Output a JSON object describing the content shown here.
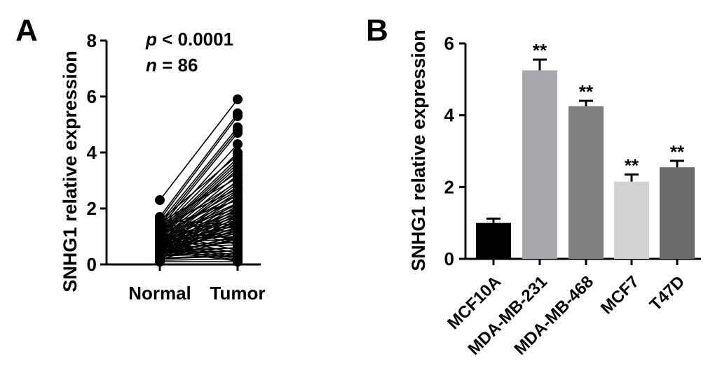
{
  "chart_data": [
    {
      "panel": "A",
      "type": "scatter",
      "ylabel": "SNHG1 relative expression",
      "ylim": [
        0,
        8
      ],
      "yticks": [
        "0",
        "2",
        "4",
        "6",
        "8"
      ],
      "categories": [
        "Normal",
        "Tumor"
      ],
      "annotation_p_label": "p",
      "annotation_p_value": " < 0.0001",
      "annotation_n_label": "n",
      "annotation_n_value": " = 86",
      "pairs": [
        [
          2.3,
          5.9
        ],
        [
          1.7,
          5.4
        ],
        [
          1.6,
          5.3
        ],
        [
          1.5,
          4.9
        ],
        [
          1.4,
          4.8
        ],
        [
          1.3,
          4.7
        ],
        [
          1.25,
          4.3
        ],
        [
          1.2,
          4.0
        ],
        [
          1.15,
          3.8
        ],
        [
          1.1,
          3.7
        ],
        [
          1.05,
          3.6
        ],
        [
          1.0,
          3.5
        ],
        [
          0.95,
          3.4
        ],
        [
          0.9,
          3.2
        ],
        [
          0.85,
          3.0
        ],
        [
          0.8,
          2.9
        ],
        [
          0.75,
          2.8
        ],
        [
          0.7,
          2.6
        ],
        [
          0.65,
          2.5
        ],
        [
          0.6,
          2.4
        ],
        [
          0.55,
          2.2
        ],
        [
          0.5,
          2.1
        ],
        [
          0.45,
          2.0
        ],
        [
          0.4,
          1.9
        ],
        [
          0.35,
          1.8
        ],
        [
          0.3,
          1.7
        ],
        [
          0.25,
          1.6
        ],
        [
          0.2,
          1.5
        ],
        [
          1.6,
          1.4
        ],
        [
          1.4,
          1.3
        ],
        [
          1.2,
          1.2
        ],
        [
          1.0,
          1.1
        ],
        [
          0.9,
          1.0
        ],
        [
          0.8,
          0.9
        ],
        [
          0.7,
          0.8
        ],
        [
          0.6,
          0.7
        ],
        [
          0.5,
          0.6
        ],
        [
          0.4,
          0.5
        ],
        [
          0.3,
          0.4
        ],
        [
          0.2,
          0.3
        ],
        [
          0.15,
          0.2
        ],
        [
          0.1,
          0.1
        ],
        [
          1.3,
          2.3
        ],
        [
          1.1,
          2.0
        ],
        [
          0.95,
          1.9
        ],
        [
          0.85,
          1.8
        ],
        [
          0.75,
          1.6
        ],
        [
          0.65,
          1.5
        ],
        [
          0.55,
          1.3
        ],
        [
          0.45,
          1.2
        ],
        [
          0.35,
          1.0
        ],
        [
          0.25,
          0.9
        ],
        [
          1.5,
          3.1
        ],
        [
          1.35,
          2.7
        ],
        [
          1.05,
          2.5
        ],
        [
          0.92,
          2.2
        ],
        [
          0.82,
          1.7
        ],
        [
          0.72,
          1.4
        ],
        [
          0.62,
          1.1
        ],
        [
          0.52,
          0.8
        ],
        [
          0.42,
          0.6
        ],
        [
          0.32,
          0.5
        ],
        [
          0.22,
          0.35
        ],
        [
          1.45,
          0.7
        ],
        [
          1.25,
          0.9
        ],
        [
          1.15,
          0.5
        ],
        [
          0.98,
          0.4
        ],
        [
          0.88,
          0.3
        ],
        [
          0.78,
          0.25
        ],
        [
          0.68,
          0.2
        ],
        [
          0.58,
          0.15
        ],
        [
          0.48,
          0.12
        ],
        [
          0.38,
          1.25
        ],
        [
          0.28,
          1.05
        ],
        [
          0.18,
          0.95
        ],
        [
          1.55,
          3.9
        ],
        [
          1.35,
          3.3
        ],
        [
          1.18,
          2.95
        ],
        [
          1.02,
          2.65
        ],
        [
          0.93,
          2.35
        ],
        [
          0.83,
          2.15
        ],
        [
          0.73,
          1.95
        ],
        [
          0.63,
          1.75
        ],
        [
          0.53,
          1.55
        ],
        [
          0.43,
          1.45
        ],
        [
          0.33,
          1.35
        ]
      ]
    },
    {
      "panel": "B",
      "type": "bar",
      "ylabel": "SNHG1 relative expression",
      "ylim": [
        0,
        6
      ],
      "yticks": [
        "0",
        "2",
        "4",
        "6"
      ],
      "categories": [
        "MCF10A",
        "MDA-MB-231",
        "MDA-MB-468",
        "MCF7",
        "T47D"
      ],
      "values": [
        1.0,
        5.25,
        4.25,
        2.15,
        2.55
      ],
      "errors": [
        0.12,
        0.3,
        0.15,
        0.2,
        0.18
      ],
      "significance": [
        "",
        "**",
        "**",
        "**",
        "**"
      ],
      "colors": [
        "#000000",
        "#a8a8ac",
        "#7f7f7f",
        "#d3d3d3",
        "#6b6b6b"
      ]
    }
  ]
}
